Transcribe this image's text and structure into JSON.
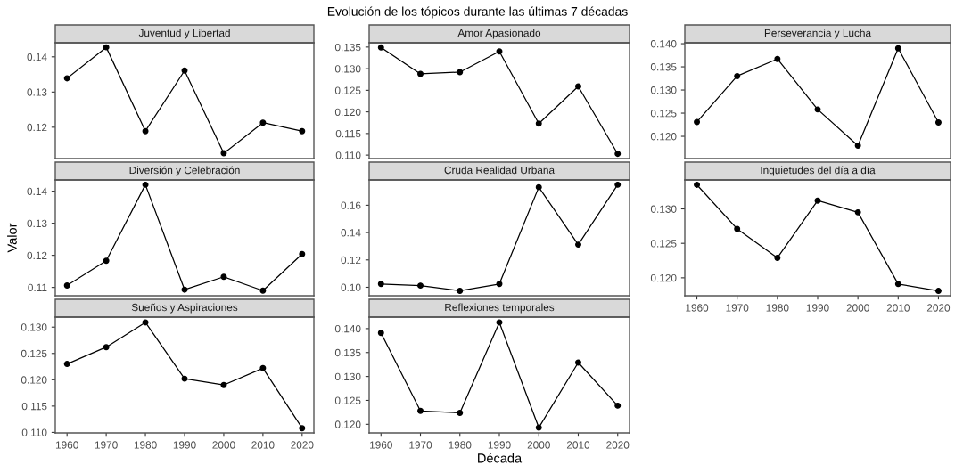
{
  "chart_data": [
    {
      "type": "line",
      "title": "Juventud y Libertad",
      "x": [
        1960,
        1970,
        1980,
        1990,
        2000,
        2010,
        2020
      ],
      "series": [
        {
          "color": "#000000",
          "values": [
            0.1339,
            0.1427,
            0.1189,
            0.1361,
            0.1126,
            0.1213,
            0.1189
          ]
        }
      ],
      "xlim": [
        1957,
        2023
      ],
      "ylim": [
        0.1111,
        0.144
      ],
      "yticks": [
        0.12,
        0.13,
        0.14
      ],
      "tick_labels": "y",
      "marker": "circle",
      "line_style": "solid",
      "grid": false,
      "legend": false
    },
    {
      "type": "line",
      "title": "Amor Apasionado",
      "annotations": [
        "Evolución de los tópicos durante las últimas 7 décadas"
      ],
      "x": [
        1960,
        1970,
        1980,
        1990,
        2000,
        2010,
        2020
      ],
      "series": [
        {
          "color": "#000000",
          "values": [
            0.1349,
            0.1288,
            0.1292,
            0.134,
            0.1173,
            0.1259,
            0.1103
          ]
        }
      ],
      "xlim": [
        1957,
        2023
      ],
      "ylim": [
        0.1092,
        0.136
      ],
      "yticks": [
        {
          "value": 0.11,
          "label": "0.110"
        },
        0.115,
        {
          "value": 0.12,
          "label": "0.120"
        },
        0.125,
        {
          "value": 0.13,
          "label": "0.130"
        },
        0.135
      ],
      "tick_labels": "y",
      "marker": "circle",
      "line_style": "solid",
      "grid": false,
      "legend": false
    },
    {
      "type": "line",
      "title": "Perseverancia y Lucha",
      "x": [
        1960,
        1970,
        1980,
        1990,
        2000,
        2010,
        2020
      ],
      "series": [
        {
          "color": "#000000",
          "values": [
            0.1231,
            0.133,
            0.1367,
            0.1258,
            0.118,
            0.139,
            0.123
          ]
        }
      ],
      "xlim": [
        1957,
        2023
      ],
      "ylim": [
        0.1152,
        0.1402
      ],
      "yticks": [
        {
          "value": 0.12,
          "label": "0.120"
        },
        0.125,
        {
          "value": 0.13,
          "label": "0.130"
        },
        0.135,
        {
          "value": 0.14,
          "label": "0.140"
        }
      ],
      "tick_labels": "y",
      "marker": "circle",
      "line_style": "solid",
      "grid": false,
      "legend": false
    },
    {
      "type": "line",
      "title": "Diversión y Celebración",
      "ylabel": "Valor",
      "x": [
        1960,
        1970,
        1980,
        1990,
        2000,
        2010,
        2020
      ],
      "series": [
        {
          "color": "#000000",
          "values": [
            0.1106,
            0.1183,
            0.142,
            0.1093,
            0.1133,
            0.109,
            0.1204
          ]
        }
      ],
      "xlim": [
        1957,
        2023
      ],
      "ylim": [
        0.1074,
        0.1435
      ],
      "yticks": [
        0.11,
        0.12,
        0.13,
        0.14
      ],
      "tick_labels": "y",
      "marker": "circle",
      "line_style": "solid",
      "grid": false,
      "legend": false
    },
    {
      "type": "line",
      "title": "Cruda Realidad Urbana",
      "x": [
        1960,
        1970,
        1980,
        1990,
        2000,
        2010,
        2020
      ],
      "series": [
        {
          "color": "#000000",
          "values": [
            0.1024,
            0.1012,
            0.0974,
            0.1024,
            0.1732,
            0.1312,
            0.175
          ]
        }
      ],
      "xlim": [
        1957,
        2023
      ],
      "ylim": [
        0.0938,
        0.1785
      ],
      "yticks": [
        {
          "value": 0.1,
          "label": "0.10"
        },
        0.12,
        0.14,
        0.16
      ],
      "tick_labels": "y",
      "marker": "circle",
      "line_style": "solid",
      "grid": false,
      "legend": false
    },
    {
      "type": "line",
      "title": "Inquietudes del día a día",
      "x": [
        1960,
        1970,
        1980,
        1990,
        2000,
        2010,
        2020
      ],
      "series": [
        {
          "color": "#000000",
          "values": [
            0.1335,
            0.1271,
            0.1229,
            0.1312,
            0.1295,
            0.1191,
            0.1181
          ]
        }
      ],
      "xlim": [
        1957,
        2023
      ],
      "xticks": [
        1960,
        1970,
        1980,
        1990,
        2000,
        2010,
        2020
      ],
      "ylim": [
        0.1174,
        0.1342
      ],
      "yticks": [
        {
          "value": 0.12,
          "label": "0.120"
        },
        0.125,
        {
          "value": 0.13,
          "label": "0.130"
        }
      ],
      "marker": "circle",
      "line_style": "solid",
      "grid": false,
      "legend": false
    },
    {
      "type": "line",
      "title": "Sueños y Aspiraciones",
      "x": [
        1960,
        1970,
        1980,
        1990,
        2000,
        2010,
        2020
      ],
      "series": [
        {
          "color": "#000000",
          "values": [
            0.123,
            0.1262,
            0.1309,
            0.1202,
            0.119,
            0.1222,
            0.1108
          ]
        }
      ],
      "xlim": [
        1957,
        2023
      ],
      "xticks": [
        1960,
        1970,
        1980,
        1990,
        2000,
        2010,
        2020
      ],
      "ylim": [
        0.1099,
        0.1319
      ],
      "yticks": [
        {
          "value": 0.11,
          "label": "0.110"
        },
        0.115,
        {
          "value": 0.12,
          "label": "0.120"
        },
        0.125,
        {
          "value": 0.13,
          "label": "0.130"
        }
      ],
      "marker": "circle",
      "line_style": "solid",
      "grid": false,
      "legend": false
    },
    {
      "type": "line",
      "title": "Reflexiones temporales",
      "xlabel": "Década",
      "x": [
        1960,
        1970,
        1980,
        1990,
        2000,
        2010,
        2020
      ],
      "series": [
        {
          "color": "#000000",
          "values": [
            0.1391,
            0.1228,
            0.1224,
            0.1413,
            0.1193,
            0.1329,
            0.1239
          ]
        }
      ],
      "xlim": [
        1957,
        2023
      ],
      "xticks": [
        1960,
        1970,
        1980,
        1990,
        2000,
        2010,
        2020
      ],
      "ylim": [
        0.1182,
        0.1424
      ],
      "yticks": [
        {
          "value": 0.12,
          "label": "0.120"
        },
        0.125,
        {
          "value": 0.13,
          "label": "0.130"
        },
        0.135,
        {
          "value": 0.14,
          "label": "0.140"
        }
      ],
      "marker": "circle",
      "line_style": "solid",
      "grid": false,
      "legend": false
    }
  ]
}
